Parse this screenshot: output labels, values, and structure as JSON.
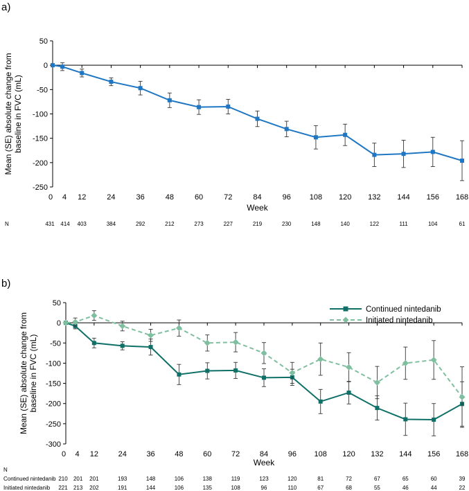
{
  "chart_data": [
    {
      "panel_label": "a)",
      "type": "line",
      "xlabel": "Week",
      "ylabel": [
        "Mean (SE) absolute change from",
        "baseline in FVC (mL)"
      ],
      "ylim": [
        -250,
        50
      ],
      "yticks": [
        50,
        0,
        -50,
        -100,
        -150,
        -200,
        -250
      ],
      "xlim": [
        0,
        168
      ],
      "xticks": [
        0,
        4,
        12,
        24,
        36,
        48,
        60,
        72,
        84,
        96,
        108,
        120,
        132,
        144,
        156,
        168
      ],
      "series": [
        {
          "name": "",
          "color": "#1f77c4",
          "dash": false,
          "marker": "square",
          "x": [
            0,
            4,
            12,
            24,
            36,
            48,
            60,
            72,
            84,
            96,
            108,
            120,
            132,
            144,
            156,
            168
          ],
          "values": [
            0,
            -3,
            -16,
            -34,
            -47,
            -72,
            -86,
            -85,
            -110,
            -131,
            -148,
            -143,
            -184,
            -182,
            -178,
            -196
          ],
          "se": [
            2,
            8,
            8,
            8,
            14,
            15,
            15,
            15,
            16,
            16,
            24,
            22,
            24,
            28,
            30,
            41
          ]
        }
      ],
      "n_table": {
        "header": "N",
        "rows": [
          {
            "label": "",
            "values": [
              "431",
              "414",
              "403",
              "384",
              "292",
              "212",
              "273",
              "227",
              "219",
              "230",
              "148",
              "140",
              "122",
              "111",
              "104",
              "61"
            ]
          }
        ]
      }
    },
    {
      "panel_label": "b)",
      "type": "line",
      "xlabel": "Week",
      "ylabel": [
        "Mean (SE) absolute change from",
        "baseline in FVC (mL)"
      ],
      "ylim": [
        -300,
        50
      ],
      "yticks": [
        50,
        0,
        -50,
        -100,
        -150,
        -200,
        -250,
        -300
      ],
      "xlim": [
        0,
        168
      ],
      "xticks": [
        0,
        4,
        12,
        24,
        36,
        48,
        60,
        72,
        84,
        96,
        108,
        120,
        132,
        144,
        156,
        168
      ],
      "legend_position": "top-right",
      "series": [
        {
          "name": "Continued nintedanib",
          "color": "#0f7068",
          "dash": false,
          "marker": "square",
          "x": [
            0,
            4,
            12,
            24,
            36,
            48,
            60,
            72,
            84,
            96,
            108,
            120,
            132,
            144,
            156,
            168
          ],
          "values": [
            0,
            -8,
            -50,
            -57,
            -60,
            -128,
            -119,
            -118,
            -136,
            -135,
            -195,
            -173,
            -211,
            -239,
            -240,
            -201
          ],
          "se": [
            2,
            7,
            12,
            10,
            20,
            25,
            20,
            20,
            22,
            20,
            30,
            28,
            30,
            40,
            40,
            55
          ]
        },
        {
          "name": "Initiated nintedanib",
          "color": "#7fbf9f",
          "dash": true,
          "marker": "diamond",
          "x": [
            0,
            4,
            12,
            24,
            36,
            48,
            60,
            72,
            84,
            96,
            108,
            120,
            132,
            144,
            156,
            168
          ],
          "values": [
            0,
            2,
            18,
            -8,
            -31,
            -13,
            -50,
            -48,
            -75,
            -124,
            -90,
            -110,
            -148,
            -100,
            -92,
            -184
          ],
          "se": [
            2,
            10,
            12,
            12,
            15,
            20,
            20,
            24,
            26,
            26,
            40,
            36,
            40,
            40,
            48,
            75
          ]
        }
      ],
      "n_table": {
        "header": "N",
        "rows": [
          {
            "label": "Continued nintedanib",
            "values": [
              "210",
              "201",
              "201",
              "193",
              "148",
              "106",
              "138",
              "119",
              "123",
              "120",
              "81",
              "72",
              "67",
              "65",
              "60",
              "39"
            ]
          },
          {
            "label": "Initiated nintedanib",
            "values": [
              "221",
              "213",
              "202",
              "191",
              "144",
              "106",
              "135",
              "108",
              "96",
              "110",
              "67",
              "68",
              "55",
              "46",
              "44",
              "22"
            ]
          }
        ]
      }
    }
  ]
}
